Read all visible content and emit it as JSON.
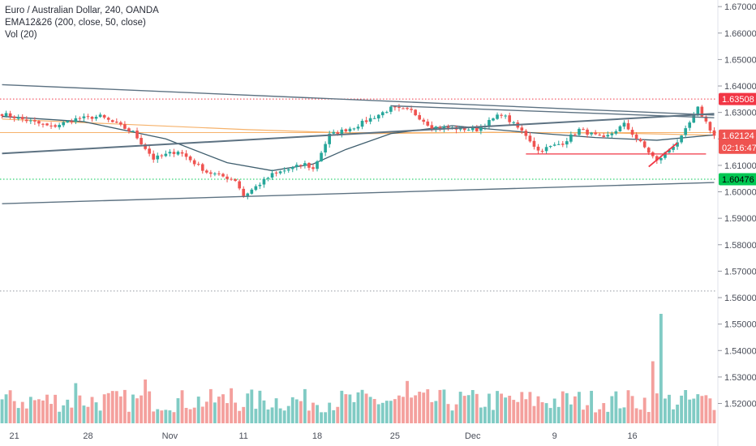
{
  "legend": {
    "title": "Euro / Australian Dollar, 240, OANDA",
    "indicator_1": "EMA12&26 (200, close, 50, close)",
    "indicator_2": "Vol (20)"
  },
  "badges": {
    "resistance": "1.63508",
    "last_price": "1.62124",
    "countdown": "02:16:47",
    "support": "1.60476"
  },
  "colors": {
    "up": "#26a69a",
    "down": "#ef5350",
    "vol_up": "#80cbc4",
    "vol_down": "#f4a09d",
    "resistance": "#f23645",
    "support": "#00c853",
    "trendline": "#5d7282",
    "ema_slow": "#f6b26b",
    "ema_fast": "#3f5e6e"
  },
  "chart_data": {
    "type": "candlestick",
    "symbol": "Euro / Australian Dollar",
    "interval": "240",
    "source": "OANDA",
    "ylim": [
      1.5125,
      1.6725
    ],
    "y_ticks": [
      "1.67000",
      "1.66000",
      "1.65000",
      "1.64000",
      "1.63000",
      "1.62000",
      "1.61000",
      "1.60000",
      "1.59000",
      "1.58000",
      "1.57000",
      "1.56000",
      "1.55000",
      "1.54000",
      "1.53000",
      "1.52000"
    ],
    "x_ticks": [
      "21",
      "28",
      "Nov",
      "11",
      "18",
      "25",
      "Dec",
      "9",
      "16"
    ],
    "bar_count": 175,
    "anchors": [
      [
        0,
        1.6295
      ],
      [
        12,
        1.6245
      ],
      [
        18,
        1.6275
      ],
      [
        24,
        1.6285
      ],
      [
        32,
        1.6225
      ],
      [
        37,
        1.6125
      ],
      [
        43,
        1.6155
      ],
      [
        50,
        1.6075
      ],
      [
        57,
        1.6045
      ],
      [
        59,
        1.5985
      ],
      [
        66,
        1.6065
      ],
      [
        74,
        1.6105
      ],
      [
        76,
        1.6085
      ],
      [
        80,
        1.6215
      ],
      [
        86,
        1.6245
      ],
      [
        95,
        1.6315
      ],
      [
        100,
        1.6305
      ],
      [
        105,
        1.6245
      ],
      [
        116,
        1.6235
      ],
      [
        122,
        1.6295
      ],
      [
        128,
        1.6215
      ],
      [
        131,
        1.6155
      ],
      [
        137,
        1.6185
      ],
      [
        141,
        1.6235
      ],
      [
        147,
        1.62
      ],
      [
        152,
        1.6255
      ],
      [
        156,
        1.6185
      ],
      [
        160,
        1.6115
      ],
      [
        166,
        1.6205
      ],
      [
        170,
        1.6315
      ],
      [
        174,
        1.6212
      ]
    ],
    "volume_ylim": [
      0,
      150
    ],
    "volume_spikes": [
      [
        159,
        85
      ],
      [
        161,
        150
      ],
      [
        35,
        60
      ],
      [
        18,
        55
      ],
      [
        99,
        58
      ],
      [
        56,
        48
      ]
    ],
    "horizontal_levels": [
      {
        "value": 1.63508,
        "style": "dotted",
        "color": "#f23645"
      },
      {
        "value": 1.60476,
        "style": "dotted",
        "color": "#00c853"
      },
      {
        "value": 1.5625,
        "style": "dotted",
        "color": "#9598a1"
      },
      {
        "value": 1.6224,
        "style": "solid",
        "color": "#f6b26b"
      }
    ],
    "trendlines": [
      {
        "from": [
          0,
          1.6405
        ],
        "to": [
          174,
          1.629
        ]
      },
      {
        "from": [
          0,
          1.6145
        ],
        "to": [
          174,
          1.6295
        ]
      },
      {
        "from": [
          0,
          1.5955
        ],
        "to": [
          174,
          1.6035
        ]
      },
      {
        "from": [
          95,
          1.6325
        ],
        "to": [
          174,
          1.628
        ]
      }
    ],
    "range_boxes": [
      {
        "from": [
          128,
          1.6143
        ],
        "to": [
          172,
          1.6143
        ],
        "color": "#f23645"
      },
      {
        "from": [
          158,
          1.6095
        ],
        "to": [
          165,
          1.6185
        ],
        "color": "#f23645"
      }
    ],
    "ema_slow": [
      [
        0,
        1.6275
      ],
      [
        30,
        1.6255
      ],
      [
        60,
        1.6235
      ],
      [
        90,
        1.622
      ],
      [
        120,
        1.6225
      ],
      [
        150,
        1.6222
      ],
      [
        174,
        1.6214
      ]
    ],
    "ema_fast": [
      [
        0,
        1.6285
      ],
      [
        20,
        1.6265
      ],
      [
        40,
        1.62
      ],
      [
        55,
        1.611
      ],
      [
        66,
        1.608
      ],
      [
        76,
        1.6105
      ],
      [
        84,
        1.616
      ],
      [
        95,
        1.622
      ],
      [
        110,
        1.625
      ],
      [
        128,
        1.6225
      ],
      [
        145,
        1.6205
      ],
      [
        160,
        1.6195
      ],
      [
        174,
        1.6215
      ]
    ]
  }
}
